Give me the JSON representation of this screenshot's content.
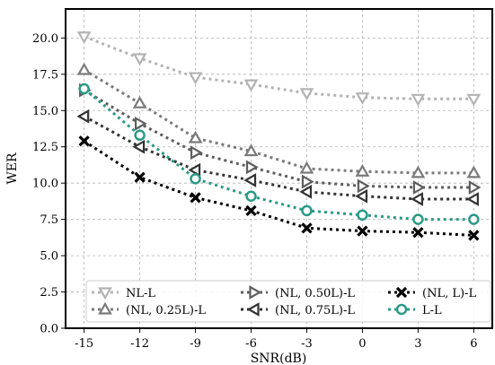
{
  "chart_data": {
    "type": "line",
    "xlabel": "SNR(dB)",
    "ylabel": "WER",
    "x": [
      -15,
      -12,
      -9,
      -6,
      -3,
      0,
      3,
      6
    ],
    "xlim": [
      -16,
      7
    ],
    "ylim": [
      0,
      22
    ],
    "xticks": [
      "-15",
      "-12",
      "-9",
      "-6",
      "-3",
      "0",
      "3",
      "6"
    ],
    "yticks": [
      "0.0",
      "2.5",
      "5.0",
      "7.5",
      "10.0",
      "12.5",
      "15.0",
      "17.5",
      "20.0"
    ],
    "grid": true,
    "legend_position": "bottom-right",
    "legend_columns": 3,
    "series": [
      {
        "name": "NL-L",
        "values": [
          20.1,
          18.6,
          17.3,
          16.8,
          16.2,
          15.9,
          15.8,
          15.8
        ],
        "color": "#b3b3b3",
        "marker": "triangle-down"
      },
      {
        "name": "(NL, 0.25L)-L",
        "values": [
          17.8,
          15.5,
          13.1,
          12.2,
          11.0,
          10.8,
          10.7,
          10.7
        ],
        "color": "#7a7a7a",
        "marker": "triangle-up"
      },
      {
        "name": "(NL, 0.50L)-L",
        "values": [
          16.4,
          14.1,
          12.1,
          11.1,
          10.1,
          9.8,
          9.7,
          9.7
        ],
        "color": "#5e5e5e",
        "marker": "triangle-right"
      },
      {
        "name": "(NL, 0.75L)-L",
        "values": [
          14.6,
          12.5,
          10.9,
          10.2,
          9.4,
          9.1,
          8.9,
          8.9
        ],
        "color": "#333333",
        "marker": "triangle-left"
      },
      {
        "name": "(NL, L)-L",
        "values": [
          12.9,
          10.4,
          9.0,
          8.1,
          6.9,
          6.7,
          6.6,
          6.4
        ],
        "color": "#000000",
        "marker": "x"
      },
      {
        "name": "L-L",
        "values": [
          16.5,
          13.3,
          10.3,
          9.1,
          8.1,
          7.8,
          7.5,
          7.5
        ],
        "color": "#2a9a86",
        "marker": "circle"
      }
    ]
  }
}
